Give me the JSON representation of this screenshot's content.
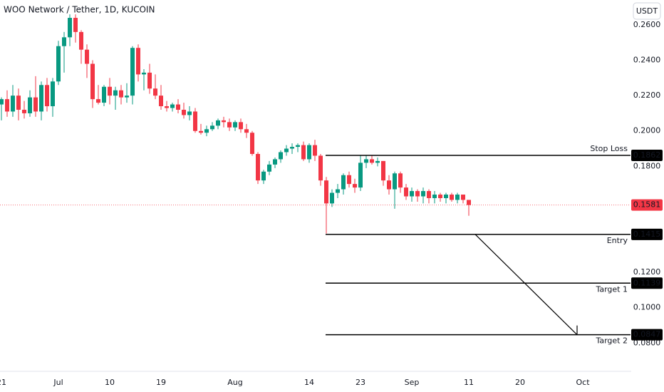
{
  "chart_data": {
    "type": "candlestick",
    "title": "WOO Network / Tether, 1D, KUCOIN",
    "currency": "USDT",
    "categories": [
      "21",
      null,
      null,
      null,
      null,
      null,
      null,
      null,
      null,
      null,
      "Jul",
      null,
      null,
      null,
      null,
      null,
      null,
      null,
      null,
      "10",
      null,
      null,
      null,
      null,
      null,
      null,
      null,
      null,
      "19",
      null,
      null,
      null,
      null,
      null,
      null,
      null,
      null,
      null,
      null,
      null,
      null,
      "Aug",
      null,
      null,
      null,
      null,
      null,
      null,
      null,
      null,
      null,
      null,
      null,
      null,
      "14",
      null,
      null,
      null,
      null,
      null,
      null,
      null,
      null,
      "23",
      null,
      null,
      null,
      null,
      null,
      null,
      null,
      null,
      "Sep",
      null,
      null,
      null,
      null,
      null,
      null,
      null,
      null,
      null,
      "11",
      null,
      null,
      null,
      null,
      null,
      null,
      null,
      null,
      "20",
      null,
      null,
      null,
      null,
      null,
      null,
      null,
      null,
      null,
      null,
      "Oct"
    ],
    "open": [
      0.215,
      0.218,
      0.211,
      0.22,
      0.212,
      0.21,
      0.219,
      0.211,
      0.226,
      0.214,
      0.228,
      0.248,
      0.253,
      0.264,
      0.256,
      0.246,
      0.238,
      0.218,
      0.216,
      0.225,
      0.22,
      0.223,
      0.219,
      0.22,
      0.247,
      0.232,
      0.233,
      0.224,
      0.22,
      0.214,
      0.213,
      0.215,
      0.212,
      0.209,
      0.211,
      0.2,
      0.199,
      0.201,
      0.203,
      0.206,
      0.205,
      0.202,
      0.205,
      0.201,
      0.199,
      0.187,
      0.172,
      0.177,
      0.181,
      0.184,
      0.188,
      0.19,
      0.191,
      0.192,
      0.184,
      0.192,
      0.186,
      0.172,
      0.159,
      0.165,
      0.167,
      0.175,
      0.17,
      0.168,
      0.182,
      0.184,
      0.182,
      0.183,
      0.172,
      0.167,
      0.176,
      0.168,
      0.163,
      0.166,
      0.163,
      0.166,
      0.162,
      0.164,
      0.162,
      0.164,
      0.161,
      0.164,
      0.161,
      null,
      null,
      null,
      null,
      null,
      null,
      null,
      null,
      null,
      null,
      null,
      null,
      null,
      null,
      null,
      null,
      null,
      null,
      null,
      null
    ],
    "high": [
      0.219,
      0.223,
      0.226,
      0.224,
      0.217,
      0.223,
      0.231,
      0.228,
      0.23,
      0.23,
      0.251,
      0.256,
      0.266,
      0.266,
      0.257,
      0.249,
      0.24,
      0.226,
      0.226,
      0.23,
      0.225,
      0.226,
      0.227,
      0.248,
      0.249,
      0.235,
      0.238,
      0.232,
      0.226,
      0.217,
      0.216,
      0.218,
      0.216,
      0.214,
      0.213,
      0.204,
      0.203,
      0.205,
      0.207,
      0.208,
      0.207,
      0.206,
      0.207,
      0.204,
      0.2,
      0.188,
      0.178,
      0.183,
      0.185,
      0.189,
      0.192,
      0.193,
      0.193,
      0.194,
      0.193,
      0.195,
      0.187,
      0.174,
      0.167,
      0.17,
      0.176,
      0.177,
      0.173,
      0.186,
      0.186,
      0.186,
      0.185,
      0.183,
      0.175,
      0.177,
      0.177,
      0.17,
      0.168,
      0.167,
      0.168,
      0.167,
      0.166,
      0.165,
      0.165,
      0.165,
      0.165,
      0.164,
      0.161,
      null,
      null,
      null,
      null,
      null,
      null,
      null,
      null,
      null,
      null,
      null,
      null,
      null,
      null,
      null,
      null,
      null,
      null,
      null,
      null
    ],
    "low": [
      0.206,
      0.208,
      0.208,
      0.206,
      0.207,
      0.208,
      0.208,
      0.206,
      0.211,
      0.208,
      0.226,
      0.233,
      0.248,
      0.25,
      0.238,
      0.23,
      0.213,
      0.215,
      0.214,
      0.215,
      0.212,
      0.215,
      0.216,
      0.215,
      0.228,
      0.223,
      0.221,
      0.218,
      0.212,
      0.211,
      0.211,
      0.21,
      0.207,
      0.206,
      0.199,
      0.198,
      0.197,
      0.2,
      0.201,
      0.202,
      0.2,
      0.2,
      0.199,
      0.196,
      0.186,
      0.17,
      0.17,
      0.175,
      0.179,
      0.182,
      0.186,
      0.187,
      0.188,
      0.183,
      0.182,
      0.183,
      0.169,
      0.142,
      0.157,
      0.162,
      0.164,
      0.168,
      0.165,
      0.166,
      0.179,
      0.181,
      0.18,
      0.169,
      0.164,
      0.156,
      0.165,
      0.161,
      0.16,
      0.16,
      0.159,
      0.159,
      0.159,
      0.16,
      0.159,
      0.16,
      0.159,
      0.159,
      0.152,
      null,
      null,
      null,
      null,
      null,
      null,
      null,
      null,
      null,
      null,
      null,
      null,
      null,
      null,
      null,
      null,
      null,
      null,
      null,
      null
    ],
    "close": [
      0.218,
      0.211,
      0.22,
      0.212,
      0.21,
      0.219,
      0.211,
      0.226,
      0.214,
      0.228,
      0.248,
      0.253,
      0.264,
      0.256,
      0.246,
      0.238,
      0.218,
      0.216,
      0.225,
      0.22,
      0.223,
      0.219,
      0.22,
      0.247,
      0.232,
      0.233,
      0.224,
      0.22,
      0.214,
      0.213,
      0.215,
      0.212,
      0.209,
      0.211,
      0.2,
      0.199,
      0.201,
      0.203,
      0.206,
      0.205,
      0.202,
      0.205,
      0.201,
      0.199,
      0.187,
      0.172,
      0.177,
      0.181,
      0.184,
      0.188,
      0.19,
      0.191,
      0.192,
      0.184,
      0.192,
      0.186,
      0.172,
      0.159,
      0.165,
      0.167,
      0.175,
      0.17,
      0.168,
      0.182,
      0.184,
      0.182,
      0.183,
      0.172,
      0.167,
      0.176,
      0.168,
      0.163,
      0.166,
      0.163,
      0.166,
      0.162,
      0.164,
      0.162,
      0.164,
      0.161,
      0.164,
      0.161,
      0.1581,
      null,
      null,
      null,
      null,
      null,
      null,
      null,
      null,
      null,
      null,
      null,
      null,
      null,
      null,
      null,
      null,
      null,
      null,
      null,
      null
    ],
    "up_color": "#089981",
    "down_color": "#f23645",
    "ylim": [
      0.0644,
      0.2741
    ],
    "yticks": [
      {
        "value": 0.26,
        "label": "0.2600"
      },
      {
        "value": 0.24,
        "label": "0.2400"
      },
      {
        "value": 0.22,
        "label": "0.2200"
      },
      {
        "value": 0.2,
        "label": "0.2000"
      },
      {
        "value": 0.18,
        "label": "0.1800"
      },
      {
        "value": 0.12,
        "label": "0.1200"
      },
      {
        "value": 0.1,
        "label": "0.1000"
      },
      {
        "value": 0.08,
        "label": "0.0800"
      }
    ],
    "last_price": 0.1581,
    "last_price_color": "#f23645",
    "level_color": "#000000",
    "levels": [
      {
        "name": "Stop Loss",
        "value": 0.1862
      },
      {
        "name": "Entry",
        "value": 0.1415
      },
      {
        "name": "Target 1",
        "value": 0.1139
      },
      {
        "name": "Target 2",
        "value": 0.0847
      }
    ]
  }
}
